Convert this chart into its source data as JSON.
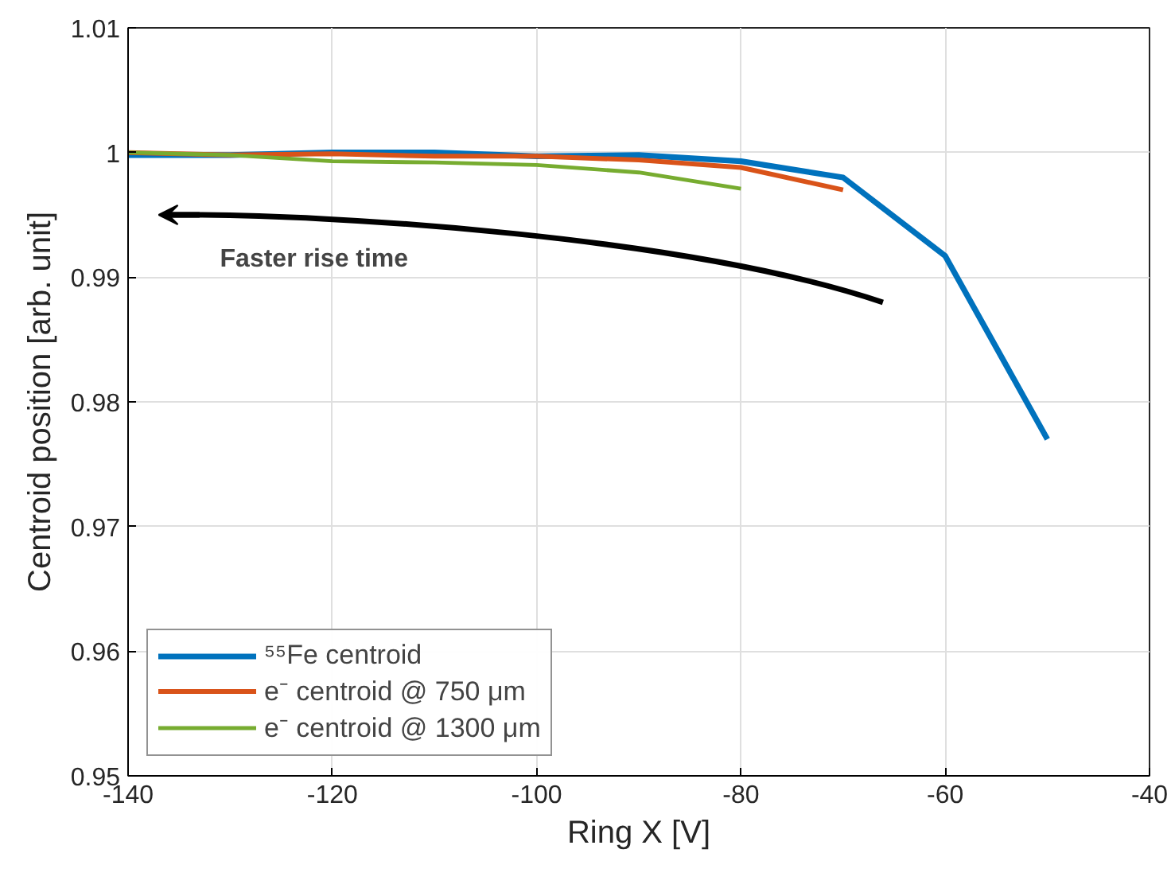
{
  "chart_data": {
    "type": "line",
    "xlabel": "Ring X [V]",
    "ylabel": "Centroid position [arb. unit]",
    "x": [
      -140,
      -130,
      -120,
      -110,
      -100,
      -90,
      -80,
      -70,
      -60,
      -50
    ],
    "series": [
      {
        "name": "⁵⁵Fe centroid",
        "color": "#0072bd",
        "values": [
          0.9998,
          0.9998,
          1.0,
          1.0,
          0.9997,
          0.9998,
          0.9993,
          0.998,
          0.9917,
          0.977
        ]
      },
      {
        "name": "e⁻ centroid @ 750 μm",
        "color": "#d95319",
        "values": [
          1.0,
          0.9998,
          0.9999,
          0.9997,
          0.9997,
          0.9994,
          0.9988,
          0.997,
          null,
          null
        ]
      },
      {
        "name": "e⁻ centroid @ 1300 μm",
        "color": "#77ac30",
        "values": [
          1.0,
          0.9998,
          0.9993,
          0.9992,
          0.999,
          0.9984,
          0.9971,
          null,
          null,
          null
        ]
      }
    ],
    "xlim": [
      -140,
      -40
    ],
    "xticks": [
      -140,
      -120,
      -100,
      -80,
      -60,
      -40
    ],
    "ylim": [
      0.95,
      1.01
    ],
    "yticks": [
      0.95,
      0.96,
      0.97,
      0.98,
      0.99,
      1,
      1.01
    ],
    "grid": true,
    "legend": "bottom left",
    "line_style": "solid",
    "marker": "none",
    "annotations": [
      "Faster rise time"
    ]
  }
}
